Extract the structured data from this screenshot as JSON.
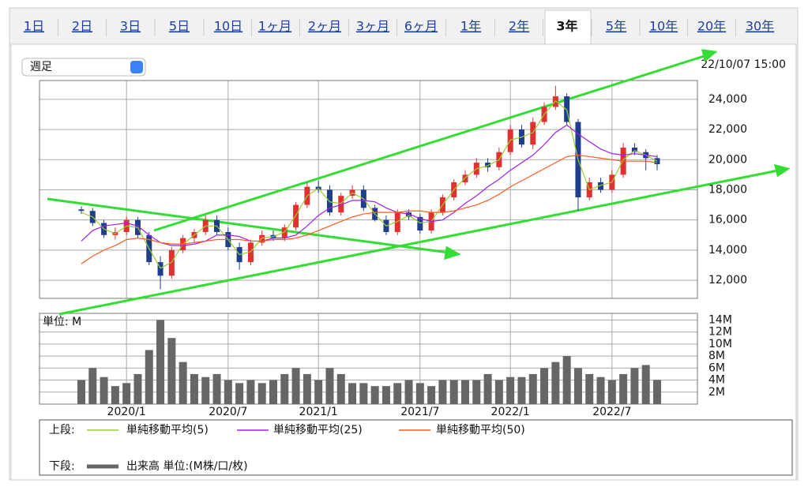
{
  "tabs": [
    {
      "label": "1日"
    },
    {
      "label": "2日"
    },
    {
      "label": "3日"
    },
    {
      "label": "5日"
    },
    {
      "label": "10日"
    },
    {
      "label": "1ヶ月"
    },
    {
      "label": "2ヶ月"
    },
    {
      "label": "3ヶ月"
    },
    {
      "label": "6ヶ月"
    },
    {
      "label": "1年"
    },
    {
      "label": "2年"
    },
    {
      "label": "3年",
      "selected": true
    },
    {
      "label": "5年"
    },
    {
      "label": "10年"
    },
    {
      "label": "20年"
    },
    {
      "label": "30年"
    }
  ],
  "period_select": "週足",
  "timestamp": "22/10/07 15:00",
  "legend": {
    "upper_label": "上段:",
    "lower_label": "下段:",
    "lower_name": "出来高 単位:(M株/口/枚)"
  },
  "chart_data": [
    {
      "type": "candlestick",
      "categories": [
        null,
        null,
        null,
        null,
        "2020/1",
        null,
        null,
        null,
        null,
        null,
        null,
        null,
        null,
        "2020/7",
        null,
        null,
        null,
        null,
        null,
        null,
        null,
        "2021/1",
        null,
        null,
        null,
        null,
        null,
        null,
        null,
        null,
        "2021/7",
        null,
        null,
        null,
        null,
        null,
        null,
        null,
        "2022/1",
        null,
        null,
        null,
        null,
        null,
        null,
        null,
        null,
        "2022/7",
        null,
        null,
        null,
        null
      ],
      "open": [
        16700,
        16600,
        15800,
        15000,
        15200,
        16000,
        15000,
        13200,
        12300,
        14000,
        14800,
        15200,
        16000,
        15200,
        14200,
        13200,
        14500,
        15000,
        14800,
        15500,
        17000,
        18200,
        18000,
        16500,
        17600,
        18000,
        16800,
        16000,
        15200,
        16500,
        16200,
        15300,
        16500,
        17500,
        18500,
        19000,
        19800,
        19500,
        20500,
        22000,
        21000,
        22500,
        23500,
        24200,
        22500,
        17500,
        18500,
        18000,
        19000,
        20800,
        20500,
        20100
      ],
      "high": [
        16900,
        16800,
        16000,
        15500,
        16200,
        16200,
        15200,
        13600,
        14200,
        15000,
        15400,
        16300,
        16300,
        15500,
        14500,
        14700,
        15300,
        15300,
        15700,
        17200,
        18500,
        18600,
        18300,
        17800,
        18300,
        18300,
        17000,
        16300,
        16700,
        16700,
        16400,
        16700,
        17700,
        18700,
        19300,
        20100,
        20100,
        20800,
        22300,
        22300,
        22800,
        23800,
        24900,
        24400,
        22700,
        18800,
        18800,
        19300,
        21100,
        21100,
        20700,
        20300
      ],
      "low": [
        16400,
        15600,
        14800,
        14700,
        15000,
        14800,
        13000,
        11400,
        12100,
        13800,
        14500,
        15000,
        15000,
        14000,
        12700,
        13000,
        14300,
        14600,
        14600,
        15300,
        16800,
        17800,
        16300,
        16300,
        17400,
        16600,
        15900,
        15000,
        15000,
        16000,
        15100,
        15100,
        16300,
        17300,
        18300,
        18800,
        19200,
        19300,
        20300,
        20800,
        20700,
        22300,
        23300,
        22300,
        16600,
        17300,
        17800,
        17800,
        18800,
        20300,
        19300,
        19300
      ],
      "close": [
        16600,
        15800,
        15000,
        15200,
        16000,
        15000,
        13200,
        12300,
        14000,
        14800,
        15200,
        16000,
        15200,
        14200,
        13200,
        14500,
        15000,
        14800,
        15500,
        17000,
        18200,
        18000,
        16500,
        17600,
        18000,
        16800,
        16000,
        15200,
        16500,
        16200,
        15300,
        16500,
        17500,
        18500,
        19000,
        19800,
        19500,
        20500,
        22000,
        21000,
        22500,
        23500,
        24200,
        22500,
        17500,
        18500,
        18000,
        19000,
        20800,
        20500,
        20100,
        19700
      ],
      "up_color": "#e03030",
      "down_color": "#1f3f8a",
      "series": [
        {
          "name": "単純移動平均(5)",
          "color": "#9acd32",
          "values": [
            16500,
            16200,
            15400,
            15100,
            15600,
            15500,
            14100,
            12800,
            13200,
            14400,
            15000,
            15600,
            15600,
            14700,
            13700,
            13900,
            14800,
            14900,
            15200,
            16300,
            17600,
            18100,
            17200,
            17100,
            17800,
            17400,
            16400,
            15600,
            15900,
            16300,
            15800,
            15900,
            17000,
            18000,
            18800,
            19400,
            19600,
            20000,
            21300,
            21500,
            21800,
            23000,
            23900,
            23300,
            20000,
            18000,
            18300,
            18500,
            20000,
            20600,
            20300,
            19900
          ]
        },
        {
          "name": "単純移動平均(25)",
          "color": "#a020f0",
          "values": [
            14600,
            15300,
            15600,
            15700,
            15800,
            15600,
            15000,
            14500,
            14300,
            14300,
            14400,
            14600,
            15000,
            15000,
            14900,
            14600,
            14600,
            14800,
            14800,
            15000,
            15600,
            16300,
            16800,
            17000,
            17300,
            17300,
            17200,
            16800,
            16500,
            16400,
            16100,
            15900,
            16000,
            16500,
            17100,
            17600,
            18200,
            18700,
            19300,
            19800,
            20300,
            21000,
            21800,
            22300,
            21700,
            21200,
            20700,
            20400,
            20300,
            20400,
            20300,
            20200
          ]
        },
        {
          "name": "単純移動平均(50)",
          "color": "#ff5a1f",
          "values": [
            13100,
            13600,
            14000,
            14300,
            14700,
            14800,
            14700,
            14500,
            14400,
            14400,
            14500,
            14600,
            14700,
            14700,
            14700,
            14600,
            14600,
            14700,
            14700,
            14800,
            15000,
            15300,
            15600,
            15900,
            16200,
            16400,
            16500,
            16500,
            16500,
            16600,
            16600,
            16500,
            16500,
            16600,
            16800,
            17000,
            17300,
            17700,
            18200,
            18600,
            19000,
            19400,
            19800,
            20200,
            20300,
            20200,
            20100,
            20000,
            19900,
            19900,
            19900,
            19800
          ]
        }
      ],
      "ylim": [
        10800,
        25250
      ],
      "yticks": [
        {
          "value": 12000,
          "label": "12,000"
        },
        {
          "value": 14000,
          "label": "14,000"
        },
        {
          "value": 16000,
          "label": "16,000"
        },
        {
          "value": 18000,
          "label": "18,000"
        },
        {
          "value": 20000,
          "label": "20,000"
        },
        {
          "value": 22000,
          "label": "22,000"
        },
        {
          "value": 24000,
          "label": "24,000"
        }
      ],
      "grid": true
    },
    {
      "type": "bar",
      "title": "単位: M",
      "color": "#666666",
      "values": [
        4,
        6,
        4.5,
        3,
        3.5,
        5,
        9,
        14,
        11,
        7,
        5,
        4.5,
        5,
        4,
        3.5,
        4,
        3.5,
        4,
        5,
        6,
        5,
        4,
        6,
        5,
        3.5,
        3.5,
        3,
        3,
        3.5,
        4,
        3.5,
        3,
        4,
        4,
        4,
        4,
        5,
        4,
        4.5,
        4.5,
        5,
        6,
        7,
        8,
        6,
        5,
        4.5,
        4,
        5,
        6,
        6.5,
        4
      ],
      "ylim": [
        0,
        15.1
      ],
      "yticks": [
        {
          "value": 2,
          "label": "2M"
        },
        {
          "value": 4,
          "label": "4M"
        },
        {
          "value": 6,
          "label": "6M"
        },
        {
          "value": 8,
          "label": "8M"
        },
        {
          "value": 10,
          "label": "10M"
        },
        {
          "value": 12,
          "label": "12M"
        },
        {
          "value": 14,
          "label": "14M"
        }
      ],
      "grid": true
    }
  ]
}
